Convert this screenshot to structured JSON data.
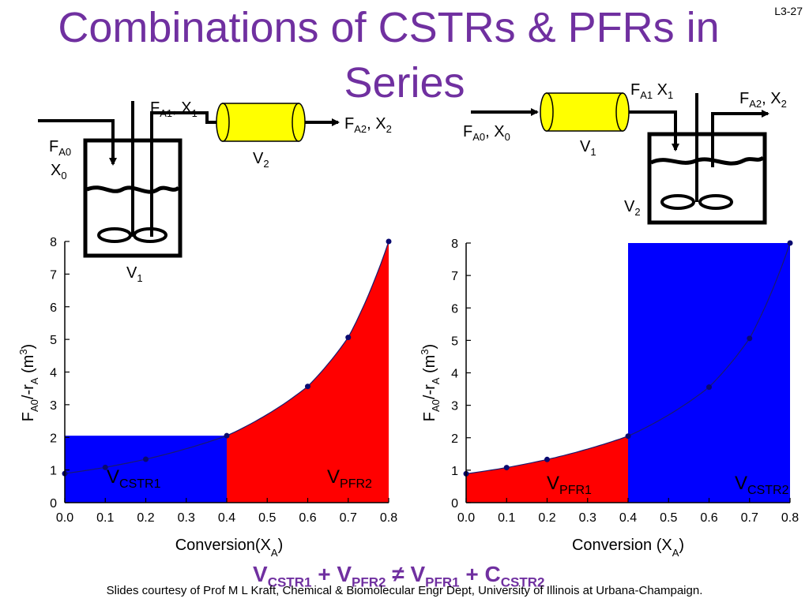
{
  "slide": {
    "title_line1": "Combinations of CSTRs & PFRs in",
    "title_line2": "Series",
    "slide_number": "L3-27",
    "footer": "Slides courtesy of Prof M L Kraft, Chemical & Biomolecular Engr Dept, University of Illinois at Urbana-Champaign.",
    "equation": {
      "v1": "V",
      "s1": "CSTR1",
      "plus1": " + ",
      "v2": "V",
      "s2": "PFR2",
      "neq": " ≠ ",
      "v3": "V",
      "s3": "PFR1",
      "plus2": " + ",
      "v4": "C",
      "s4": "CSTR2"
    }
  },
  "left_diagram": {
    "feed": [
      "F",
      "A0",
      "X",
      "0"
    ],
    "mid_stream": [
      "F",
      "A1",
      ", X",
      "1"
    ],
    "out_stream": [
      "F",
      "A2",
      ", X",
      "2"
    ],
    "cstr_volume": [
      "V",
      "1"
    ],
    "pfr_volume": [
      "V",
      "2"
    ]
  },
  "right_diagram": {
    "feed": [
      "F",
      "A0",
      ", X",
      "0"
    ],
    "mid_stream": [
      "F",
      "A1",
      " X",
      "1"
    ],
    "out_stream": [
      "F",
      "A2",
      ", X",
      "2"
    ],
    "pfr_volume": [
      "V",
      "1"
    ],
    "cstr_volume": [
      "V",
      "2"
    ]
  },
  "chart_data": [
    {
      "type": "area",
      "xlabel": "Conversion(X",
      "xlabel_sub": "A",
      "xlabel_close": ")",
      "ylabel": "F_A0/-r_A (m^3)",
      "xlim": [
        0,
        0.8
      ],
      "ylim": [
        0,
        8
      ],
      "x_ticks": [
        "0.0",
        "0.1",
        "0.2",
        "0.3",
        "0.4",
        "0.5",
        "0.6",
        "0.7",
        "0.8"
      ],
      "y_ticks": [
        "0",
        "1",
        "2",
        "3",
        "4",
        "5",
        "6",
        "7",
        "8"
      ],
      "points": {
        "x": [
          0.0,
          0.1,
          0.2,
          0.4,
          0.6,
          0.7,
          0.8
        ],
        "y": [
          0.89,
          1.08,
          1.33,
          2.05,
          3.56,
          5.06,
          8.0
        ]
      },
      "regions": [
        {
          "label_main": "V",
          "label_sub": "CSTR1",
          "kind": "rect",
          "x_from": 0.0,
          "x_to": 0.4,
          "height": 2.05,
          "color": "#0000ff"
        },
        {
          "label_main": "V",
          "label_sub": "PFR2",
          "kind": "under_curve",
          "x_from": 0.4,
          "x_to": 0.8,
          "color": "#ff0000"
        }
      ]
    },
    {
      "type": "area",
      "xlabel": "Conversion (X",
      "xlabel_sub": "A",
      "xlabel_close": ")",
      "ylabel": "F_A0/-r_A (m^3)",
      "xlim": [
        0,
        0.8
      ],
      "ylim": [
        0,
        8
      ],
      "x_ticks": [
        "0.0",
        "0.1",
        "0.2",
        "0.3",
        "0.4",
        "0.5",
        "0.6",
        "0.7",
        "0.8"
      ],
      "y_ticks": [
        "0",
        "1",
        "2",
        "3",
        "4",
        "5",
        "6",
        "7",
        "8"
      ],
      "points": {
        "x": [
          0.0,
          0.1,
          0.2,
          0.4,
          0.6,
          0.7,
          0.8
        ],
        "y": [
          0.89,
          1.08,
          1.33,
          2.05,
          3.56,
          5.06,
          8.0
        ]
      },
      "regions": [
        {
          "label_main": "V",
          "label_sub": "PFR1",
          "kind": "under_curve",
          "x_from": 0.0,
          "x_to": 0.4,
          "color": "#ff0000"
        },
        {
          "label_main": "V",
          "label_sub": "CSTR2",
          "kind": "rect",
          "x_from": 0.4,
          "x_to": 0.8,
          "height": 8.0,
          "color": "#0000ff"
        }
      ]
    }
  ]
}
